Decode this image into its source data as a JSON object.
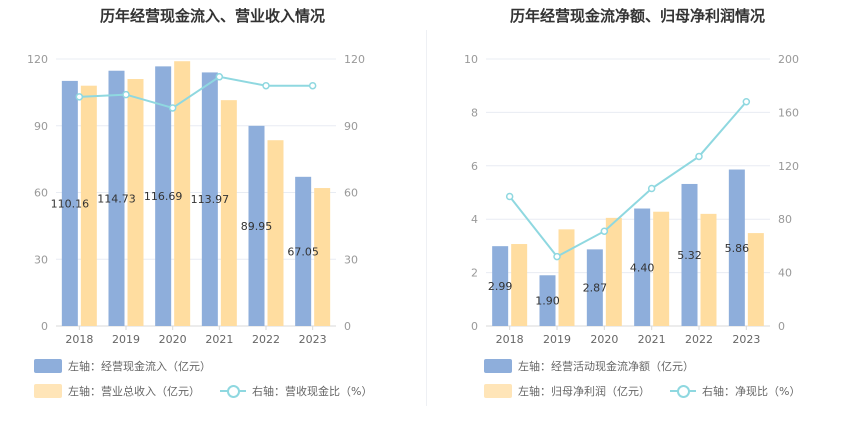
{
  "chart_data": [
    {
      "type": "bar",
      "title": "历年经营现金流入、营业收入情况",
      "categories": [
        "2018",
        "2019",
        "2020",
        "2021",
        "2022",
        "2023"
      ],
      "series": [
        {
          "name": "左轴：经营现金流入（亿元）",
          "axis": "left",
          "kind": "bar",
          "color": "#8eaedb",
          "values": [
            110.16,
            114.73,
            116.69,
            113.97,
            89.95,
            67.05
          ],
          "labels": [
            "110.16",
            "114.73",
            "116.69",
            "113.97",
            "89.95",
            "67.05"
          ]
        },
        {
          "name": "左轴：营业总收入（亿元）",
          "axis": "left",
          "kind": "bar",
          "color": "#ffdda0",
          "values": [
            108,
            111,
            119,
            101.5,
            83.5,
            62
          ]
        },
        {
          "name": "右轴：营收现金比（%）",
          "axis": "right",
          "kind": "line",
          "color": "#8fd8e0",
          "values": [
            103,
            104,
            98,
            112,
            108,
            108
          ]
        }
      ],
      "left_axis": {
        "min": 0,
        "max": 120,
        "ticks": [
          "0",
          "30",
          "60",
          "90",
          "120"
        ]
      },
      "right_axis": {
        "min": 0,
        "max": 120,
        "ticks": [
          "0",
          "30",
          "60",
          "90",
          "120"
        ]
      },
      "legend": {
        "item1": "左轴：经营现金流入（亿元）",
        "item2": "左轴：营业总收入（亿元）",
        "item3": "右轴：营收现金比（%）"
      }
    },
    {
      "type": "bar",
      "title": "历年经营现金流净额、归母净利润情况",
      "categories": [
        "2018",
        "2019",
        "2020",
        "2021",
        "2022",
        "2023"
      ],
      "series": [
        {
          "name": "左轴：经营活动现金流净额（亿元）",
          "axis": "left",
          "kind": "bar",
          "color": "#8eaedb",
          "values": [
            2.99,
            1.9,
            2.87,
            4.4,
            5.32,
            5.86
          ],
          "labels": [
            "2.99",
            "1.90",
            "2.87",
            "4.40",
            "5.32",
            "5.86"
          ]
        },
        {
          "name": "左轴：归母净利润（亿元）",
          "axis": "left",
          "kind": "bar",
          "color": "#ffdda0",
          "values": [
            3.07,
            3.62,
            4.05,
            4.28,
            4.2,
            3.48
          ]
        },
        {
          "name": "右轴：净现比（%）",
          "axis": "right",
          "kind": "line",
          "color": "#8fd8e0",
          "values": [
            97,
            52,
            71,
            103,
            127,
            168
          ]
        }
      ],
      "left_axis": {
        "min": 0,
        "max": 10,
        "ticks": [
          "0",
          "2",
          "4",
          "6",
          "8",
          "10"
        ]
      },
      "right_axis": {
        "min": 0,
        "max": 200,
        "ticks": [
          "0",
          "40",
          "80",
          "120",
          "160",
          "200"
        ]
      },
      "legend": {
        "item1": "左轴：经营活动现金流净额（亿元）",
        "item2": "左轴：归母净利润（亿元）",
        "item3": "右轴：净现比（%）"
      }
    }
  ]
}
